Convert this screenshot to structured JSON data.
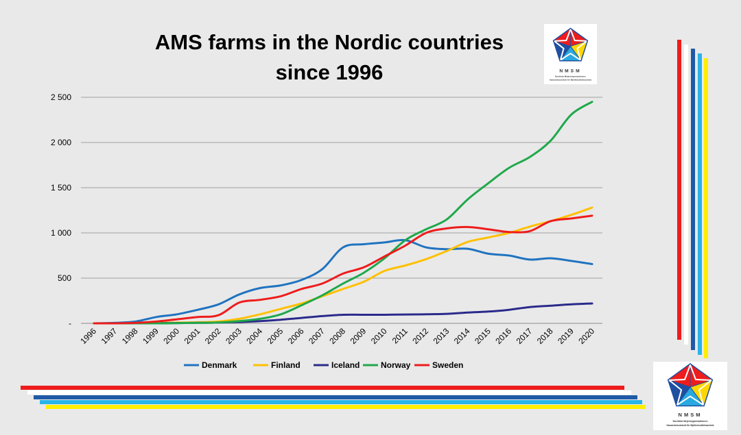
{
  "chart_data": {
    "type": "line",
    "title_lines": [
      "AMS farms in the Nordic countries",
      "since 1996"
    ],
    "xlabel": "",
    "ylabel": "",
    "x": [
      "1996",
      "1997",
      "1998",
      "1999",
      "2000",
      "2001",
      "2002",
      "2003",
      "2004",
      "2005",
      "2006",
      "2007",
      "2008",
      "2009",
      "2010",
      "2011",
      "2012",
      "2013",
      "2014",
      "2015",
      "2016",
      "2017",
      "2018",
      "2019",
      "2020"
    ],
    "ylim": [
      0,
      2500
    ],
    "yticks": [
      0,
      500,
      1000,
      1500,
      2000,
      2500
    ],
    "ytick_labels": [
      "-",
      "500",
      "1 000",
      "1 500",
      "2 000",
      "2 500"
    ],
    "grid": "horizontal",
    "legend_position": "bottom",
    "series": [
      {
        "name": "Denmark",
        "color": "#1f73c0",
        "values": [
          0,
          5,
          20,
          70,
          100,
          150,
          210,
          320,
          390,
          420,
          480,
          600,
          840,
          875,
          895,
          920,
          840,
          820,
          825,
          770,
          750,
          705,
          720,
          690,
          655
        ]
      },
      {
        "name": "Finland",
        "color": "#ffc000",
        "values": [
          0,
          0,
          2,
          5,
          8,
          12,
          20,
          50,
          100,
          160,
          220,
          300,
          380,
          460,
          580,
          640,
          710,
          800,
          900,
          950,
          1000,
          1070,
          1130,
          1200,
          1280
        ]
      },
      {
        "name": "Iceland",
        "color": "#2a2a8c",
        "values": [
          0,
          0,
          0,
          2,
          3,
          5,
          8,
          15,
          25,
          40,
          60,
          80,
          95,
          95,
          95,
          98,
          100,
          105,
          120,
          130,
          150,
          180,
          195,
          210,
          220
        ]
      },
      {
        "name": "Norway",
        "color": "#1fa84a",
        "values": [
          0,
          0,
          0,
          0,
          2,
          5,
          10,
          25,
          50,
          100,
          200,
          310,
          440,
          560,
          720,
          920,
          1040,
          1150,
          1370,
          1550,
          1720,
          1840,
          2020,
          2310,
          2450
        ]
      },
      {
        "name": "Sweden",
        "color": "#ee1c1c",
        "values": [
          0,
          0,
          5,
          20,
          45,
          70,
          90,
          230,
          260,
          300,
          380,
          440,
          550,
          620,
          740,
          860,
          1000,
          1050,
          1065,
          1040,
          1010,
          1020,
          1130,
          1160,
          1190
        ]
      }
    ]
  },
  "logo": {
    "letters": "NMSM",
    "subtitle_line1": "Nordiska Mejeriorganisationers",
    "subtitle_line2": "Samarbetsutskott för Mjölkekvalitetsarbete",
    "colors": [
      "#ee1c1c",
      "#1f4fa0",
      "#ffffff",
      "#ffd700",
      "#29a9e0"
    ]
  },
  "decoration": {
    "stripe_colors": [
      "#ee1c1c",
      "#ffffff",
      "#1f5aa6",
      "#29b4e8",
      "#ffee00"
    ]
  }
}
